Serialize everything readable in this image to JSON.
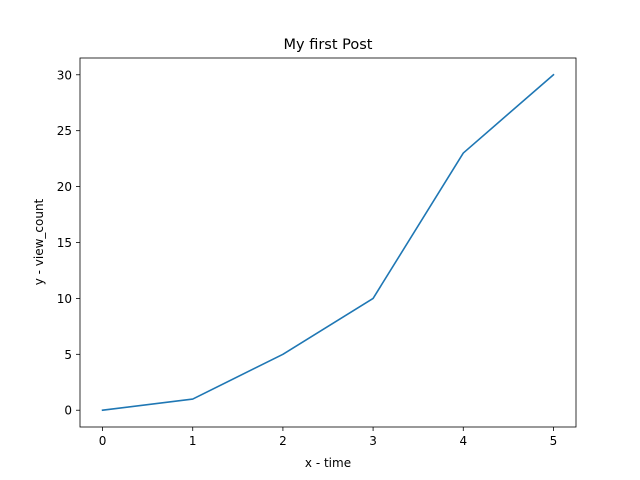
{
  "chart_data": {
    "type": "line",
    "title": "My first Post",
    "xlabel": "x - time",
    "ylabel": "y - view_count",
    "x": [
      0,
      1,
      2,
      3,
      4,
      5
    ],
    "series": [
      {
        "values": [
          0,
          1,
          5,
          10,
          23,
          30
        ],
        "color": "#1f77b4"
      }
    ],
    "xlim": [
      -0.25,
      5.25
    ],
    "ylim": [
      -1.5,
      31.5
    ],
    "xticks": [
      0,
      1,
      2,
      3,
      4,
      5
    ],
    "yticks": [
      0,
      5,
      10,
      15,
      20,
      25,
      30
    ],
    "grid": false,
    "legend": "none"
  }
}
